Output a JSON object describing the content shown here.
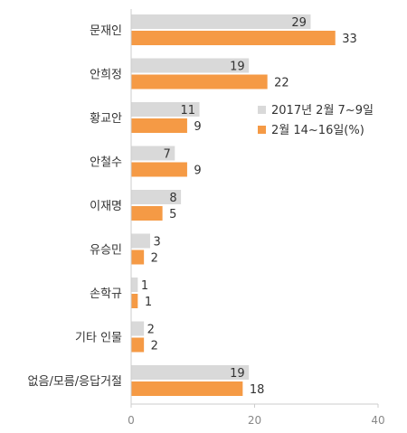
{
  "chart_data": {
    "type": "bar",
    "orientation": "horizontal",
    "categories": [
      "문재인",
      "안희정",
      "황교안",
      "안철수",
      "이재명",
      "유승민",
      "손학규",
      "기타 인물",
      "없음/모름/응답거절"
    ],
    "series": [
      {
        "name": "2017년 2월 7~9일",
        "color": "#d9d9d9",
        "values": [
          29,
          19,
          11,
          7,
          8,
          3,
          1,
          2,
          19
        ]
      },
      {
        "name": "2월 14~16일(%)",
        "color": "#f59a45",
        "values": [
          33,
          22,
          9,
          9,
          5,
          2,
          1,
          2,
          18
        ]
      }
    ],
    "xlim": [
      0,
      40
    ],
    "xticks": [
      0,
      20,
      40
    ],
    "grid": false,
    "legend_position": "right"
  }
}
